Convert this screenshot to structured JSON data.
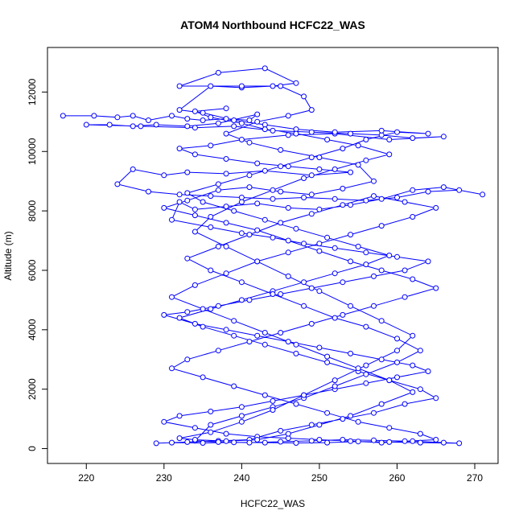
{
  "chart_data": {
    "type": "scatter",
    "title": "ATOM4 Northbound HCFC22_WAS",
    "xlabel": "HCFC22_WAS",
    "ylabel": "Altitude (m)",
    "xlim": [
      215,
      273
    ],
    "ylim": [
      -500,
      13500
    ],
    "x_ticks": [
      220,
      230,
      240,
      250,
      260,
      270
    ],
    "y_ticks": [
      0,
      2000,
      4000,
      6000,
      8000,
      10000,
      12000
    ],
    "grid": false,
    "legend": "none",
    "style": "points connected by lines (type='b')",
    "color": "#0000ff",
    "series": [
      {
        "points": [
          [
            217,
            11200
          ],
          [
            221,
            11200
          ],
          [
            224,
            11150
          ],
          [
            226,
            11200
          ],
          [
            228,
            11050
          ],
          [
            231,
            11200
          ],
          [
            233,
            11100
          ],
          [
            235,
            11050
          ],
          [
            238,
            11100
          ],
          [
            241,
            11050
          ],
          [
            242,
            11250
          ],
          [
            237,
            10950
          ],
          [
            233,
            10850
          ],
          [
            229,
            10900
          ],
          [
            226,
            10850
          ],
          [
            223,
            10900
          ],
          [
            220,
            10900
          ],
          [
            227,
            10850
          ],
          [
            234,
            10800
          ],
          [
            239,
            10850
          ],
          [
            244,
            10700
          ],
          [
            249,
            10650
          ],
          [
            254,
            10600
          ],
          [
            258,
            10550
          ],
          [
            262,
            10450
          ],
          [
            266,
            10500
          ],
          [
            259,
            10400
          ],
          [
            252,
            10600
          ],
          [
            246,
            10550
          ],
          [
            240,
            10400
          ],
          [
            236,
            10200
          ],
          [
            232,
            10100
          ],
          [
            234,
            9900
          ],
          [
            238,
            9750
          ],
          [
            242,
            9600
          ],
          [
            246,
            9500
          ],
          [
            250,
            9400
          ],
          [
            254,
            9300
          ],
          [
            249,
            9200
          ],
          [
            243,
            9350
          ],
          [
            238,
            9250
          ],
          [
            233,
            9300
          ],
          [
            230,
            9200
          ],
          [
            226,
            9400
          ],
          [
            224,
            8900
          ],
          [
            228,
            8650
          ],
          [
            232,
            8550
          ],
          [
            236,
            8500
          ],
          [
            240,
            8450
          ],
          [
            244,
            8400
          ],
          [
            248,
            8450
          ],
          [
            252,
            8400
          ],
          [
            256,
            8350
          ],
          [
            260,
            8450
          ],
          [
            264,
            8650
          ],
          [
            268,
            8700
          ],
          [
            271,
            8550
          ],
          [
            266,
            8800
          ],
          [
            262,
            8700
          ],
          [
            258,
            8400
          ],
          [
            254,
            8200
          ],
          [
            250,
            8050
          ],
          [
            246,
            8100
          ],
          [
            242,
            8250
          ],
          [
            238,
            8150
          ],
          [
            234,
            8050
          ],
          [
            232,
            8300
          ],
          [
            231,
            7700
          ],
          [
            236,
            7450
          ],
          [
            240,
            7250
          ],
          [
            244,
            7100
          ],
          [
            248,
            6900
          ],
          [
            252,
            6750
          ],
          [
            256,
            6600
          ],
          [
            260,
            6450
          ],
          [
            264,
            6300
          ],
          [
            261,
            6000
          ],
          [
            257,
            5800
          ],
          [
            253,
            5600
          ],
          [
            249,
            5400
          ],
          [
            245,
            5200
          ],
          [
            241,
            5000
          ],
          [
            237,
            4800
          ],
          [
            233,
            4600
          ],
          [
            230,
            4500
          ],
          [
            234,
            4200
          ],
          [
            238,
            4000
          ],
          [
            242,
            3800
          ],
          [
            246,
            3600
          ],
          [
            250,
            3400
          ],
          [
            254,
            3200
          ],
          [
            258,
            3000
          ],
          [
            262,
            2800
          ],
          [
            264,
            2600
          ],
          [
            260,
            2400
          ],
          [
            256,
            2200
          ],
          [
            252,
            2000
          ],
          [
            248,
            1800
          ],
          [
            244,
            1600
          ],
          [
            240,
            1400
          ],
          [
            236,
            1250
          ],
          [
            232,
            1100
          ],
          [
            230,
            900
          ],
          [
            234,
            700
          ],
          [
            238,
            500
          ],
          [
            242,
            400
          ],
          [
            246,
            350
          ],
          [
            250,
            300
          ],
          [
            254,
            250
          ],
          [
            258,
            200
          ],
          [
            262,
            250
          ],
          [
            266,
            200
          ],
          [
            268,
            180
          ],
          [
            263,
            200
          ],
          [
            259,
            220
          ],
          [
            255,
            240
          ],
          [
            251,
            200
          ],
          [
            247,
            190
          ],
          [
            243,
            200
          ],
          [
            239,
            210
          ],
          [
            235,
            190
          ],
          [
            231,
            200
          ],
          [
            229,
            180
          ],
          [
            233,
            220
          ],
          [
            237,
            260
          ],
          [
            241,
            300
          ],
          [
            245,
            600
          ],
          [
            249,
            800
          ],
          [
            253,
            1000
          ],
          [
            257,
            1200
          ],
          [
            261,
            1500
          ],
          [
            265,
            1700
          ],
          [
            263,
            2000
          ],
          [
            259,
            2300
          ],
          [
            255,
            2600
          ],
          [
            251,
            2900
          ],
          [
            247,
            3200
          ],
          [
            243,
            3500
          ],
          [
            239,
            3800
          ],
          [
            235,
            4100
          ],
          [
            232,
            4400
          ],
          [
            236,
            4700
          ],
          [
            240,
            5000
          ],
          [
            244,
            5300
          ],
          [
            248,
            5600
          ],
          [
            252,
            5900
          ],
          [
            256,
            6200
          ],
          [
            259,
            6500
          ],
          [
            255,
            6800
          ],
          [
            251,
            7100
          ],
          [
            247,
            7400
          ],
          [
            243,
            7700
          ],
          [
            239,
            8000
          ],
          [
            235,
            8300
          ],
          [
            233,
            8600
          ],
          [
            237,
            8900
          ],
          [
            241,
            9200
          ],
          [
            245,
            9500
          ],
          [
            249,
            9800
          ],
          [
            253,
            10100
          ],
          [
            256,
            10400
          ],
          [
            260,
            10650
          ],
          [
            264,
            10600
          ],
          [
            258,
            10700
          ],
          [
            252,
            10650
          ],
          [
            247,
            10750
          ],
          [
            243,
            10900
          ],
          [
            239,
            11050
          ],
          [
            235,
            11300
          ],
          [
            232,
            11400
          ],
          [
            236,
            12200
          ],
          [
            240,
            12150
          ],
          [
            244,
            12200
          ],
          [
            247,
            12300
          ],
          [
            243,
            12800
          ],
          [
            237,
            12650
          ],
          [
            232,
            12200
          ],
          [
            240,
            12200
          ],
          [
            245,
            12200
          ],
          [
            248,
            11850
          ],
          [
            249,
            11400
          ],
          [
            246,
            11200
          ],
          [
            242,
            11000
          ],
          [
            238,
            10600
          ],
          [
            241,
            10300
          ],
          [
            245,
            10050
          ],
          [
            250,
            9800
          ],
          [
            255,
            9550
          ],
          [
            257,
            9000
          ],
          [
            253,
            8750
          ],
          [
            249,
            8550
          ],
          [
            245,
            8650
          ],
          [
            241,
            8800
          ],
          [
            237,
            8700
          ],
          [
            233,
            8350
          ],
          [
            230,
            8100
          ],
          [
            234,
            7850
          ],
          [
            238,
            7600
          ],
          [
            242,
            7350
          ],
          [
            246,
            7000
          ],
          [
            250,
            6650
          ],
          [
            254,
            6300
          ],
          [
            258,
            6000
          ],
          [
            262,
            5700
          ],
          [
            265,
            5400
          ],
          [
            261,
            5100
          ],
          [
            257,
            4800
          ],
          [
            253,
            4500
          ],
          [
            249,
            4200
          ],
          [
            245,
            3900
          ],
          [
            241,
            3600
          ],
          [
            237,
            3300
          ],
          [
            233,
            3000
          ],
          [
            231,
            2700
          ],
          [
            235,
            2400
          ],
          [
            239,
            2100
          ],
          [
            243,
            1800
          ],
          [
            247,
            1500
          ],
          [
            251,
            1200
          ],
          [
            255,
            900
          ],
          [
            259,
            700
          ],
          [
            263,
            500
          ],
          [
            265,
            300
          ],
          [
            261,
            250
          ],
          [
            257,
            280
          ],
          [
            253,
            300
          ],
          [
            249,
            260
          ],
          [
            245,
            230
          ],
          [
            241,
            200
          ],
          [
            237,
            220
          ],
          [
            234,
            260
          ],
          [
            236,
            800
          ],
          [
            240,
            1100
          ],
          [
            244,
            1400
          ],
          [
            248,
            1700
          ],
          [
            252,
            2100
          ],
          [
            256,
            2500
          ],
          [
            260,
            2900
          ],
          [
            263,
            3300
          ],
          [
            260,
            3700
          ],
          [
            256,
            4100
          ],
          [
            252,
            4400
          ],
          [
            248,
            4800
          ],
          [
            244,
            5200
          ],
          [
            240,
            5600
          ],
          [
            236,
            6000
          ],
          [
            233,
            6400
          ],
          [
            237,
            6800
          ],
          [
            241,
            7200
          ],
          [
            245,
            7600
          ],
          [
            249,
            7900
          ],
          [
            253,
            8200
          ],
          [
            257,
            8500
          ],
          [
            261,
            8300
          ],
          [
            265,
            8100
          ],
          [
            262,
            7800
          ],
          [
            258,
            7500
          ],
          [
            254,
            7200
          ],
          [
            250,
            6900
          ],
          [
            246,
            6600
          ],
          [
            242,
            6300
          ],
          [
            238,
            5900
          ],
          [
            234,
            5500
          ],
          [
            231,
            5100
          ],
          [
            235,
            4700
          ],
          [
            239,
            4300
          ],
          [
            243,
            3900
          ],
          [
            247,
            3500
          ],
          [
            251,
            3100
          ],
          [
            255,
            2700
          ],
          [
            259,
            2300
          ],
          [
            262,
            1900
          ],
          [
            258,
            1500
          ],
          [
            254,
            1100
          ],
          [
            250,
            800
          ],
          [
            246,
            500
          ],
          [
            242,
            300
          ],
          [
            238,
            250
          ],
          [
            234,
            300
          ],
          [
            232,
            350
          ],
          [
            236,
            550
          ],
          [
            240,
            900
          ],
          [
            244,
            1300
          ],
          [
            248,
            1800
          ],
          [
            252,
            2300
          ],
          [
            256,
            2800
          ],
          [
            260,
            3300
          ],
          [
            262,
            3800
          ],
          [
            258,
            4300
          ],
          [
            254,
            4800
          ],
          [
            250,
            5300
          ],
          [
            246,
            5800
          ],
          [
            242,
            6300
          ],
          [
            238,
            6800
          ],
          [
            234,
            7300
          ],
          [
            236,
            7800
          ],
          [
            240,
            8300
          ],
          [
            244,
            8700
          ],
          [
            248,
            9100
          ],
          [
            252,
            9400
          ],
          [
            256,
            9700
          ],
          [
            259,
            9900
          ],
          [
            255,
            10200
          ],
          [
            251,
            10400
          ],
          [
            247,
            10600
          ],
          [
            243,
            10750
          ],
          [
            240,
            10950
          ],
          [
            236,
            11150
          ],
          [
            234,
            11350
          ],
          [
            238,
            11450
          ]
        ]
      }
    ]
  }
}
